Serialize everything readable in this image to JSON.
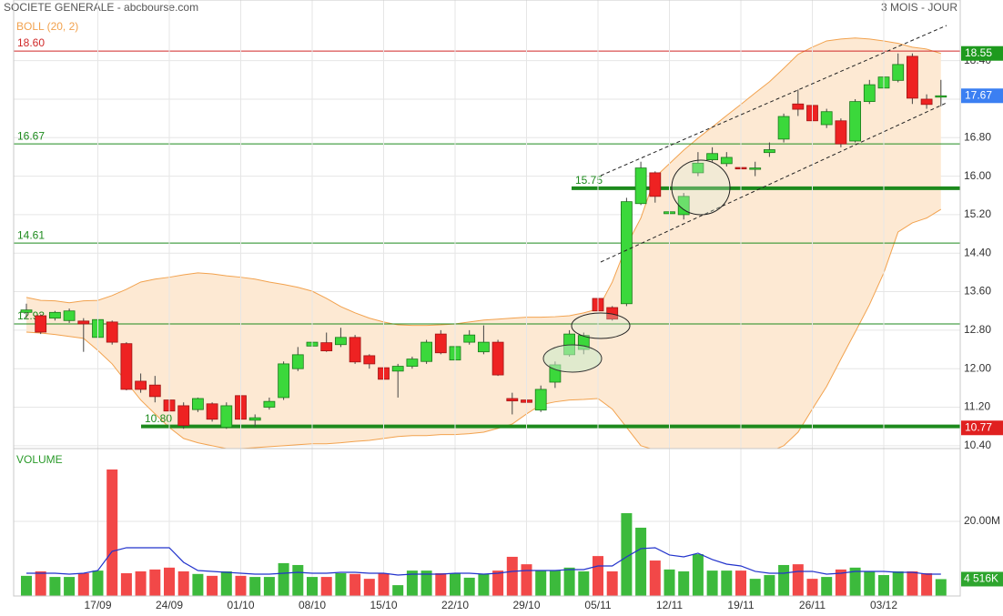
{
  "chart_data": [
    {
      "type": "candlestick",
      "title": "SOCIETE GENERALE - abcbourse.com",
      "subtitle": "3 MOIS - JOUR",
      "categories": [
        null,
        null,
        null,
        null,
        null,
        "17/09",
        null,
        null,
        null,
        null,
        "24/09",
        null,
        null,
        null,
        null,
        "01/10",
        null,
        null,
        null,
        null,
        "08/10",
        null,
        null,
        null,
        null,
        "15/10",
        null,
        null,
        null,
        null,
        "22/10",
        null,
        null,
        null,
        null,
        "29/10",
        null,
        null,
        null,
        null,
        "05/11",
        null,
        null,
        null,
        null,
        "12/11",
        null,
        null,
        null,
        null,
        "19/11",
        null,
        null,
        null,
        null,
        "26/11",
        null,
        null,
        null,
        null,
        "03/12",
        null,
        null,
        null,
        null
      ],
      "open": [
        13.17,
        13.1,
        13.05,
        13.0,
        12.99,
        12.65,
        12.97,
        12.52,
        11.74,
        11.66,
        11.35,
        11.23,
        11.15,
        11.27,
        10.78,
        11.44,
        10.93,
        11.2,
        11.4,
        12.0,
        12.47,
        12.54,
        12.5,
        12.65,
        12.27,
        12.02,
        11.95,
        12.05,
        12.15,
        12.72,
        12.18,
        12.55,
        12.35,
        12.55,
        11.38,
        11.35,
        11.14,
        11.72,
        12.29,
        12.4,
        13.46,
        13.27,
        13.35,
        15.43,
        16.07,
        15.22,
        15.2,
        16.07,
        16.34,
        16.26,
        16.18,
        16.15,
        16.49,
        16.77,
        17.5,
        17.47,
        17.07,
        17.15,
        16.73,
        17.55,
        17.83,
        17.99,
        18.49,
        17.6,
        17.66
      ],
      "high": [
        13.35,
        13.13,
        13.2,
        13.25,
        13.05,
        13.1,
        13.0,
        12.55,
        11.9,
        11.85,
        11.45,
        11.3,
        11.4,
        11.3,
        11.3,
        11.5,
        11.05,
        11.4,
        12.15,
        12.45,
        12.65,
        12.75,
        12.85,
        12.7,
        12.3,
        12.05,
        12.1,
        12.25,
        12.6,
        12.8,
        12.5,
        12.8,
        12.9,
        12.6,
        11.5,
        11.5,
        11.65,
        12.15,
        12.8,
        12.75,
        13.55,
        13.3,
        15.55,
        16.3,
        16.1,
        15.3,
        15.65,
        16.5,
        16.6,
        16.5,
        16.25,
        16.3,
        16.7,
        17.3,
        17.8,
        17.5,
        17.4,
        17.2,
        17.6,
        18.0,
        18.15,
        18.55,
        18.55,
        17.7,
        18.0
      ],
      "low": [
        13.05,
        12.72,
        13.0,
        12.95,
        12.35,
        12.6,
        12.5,
        11.55,
        11.5,
        11.3,
        11.0,
        10.75,
        11.1,
        10.9,
        10.75,
        10.9,
        10.8,
        11.15,
        11.35,
        11.95,
        12.4,
        12.35,
        12.45,
        12.1,
        12.0,
        11.5,
        11.4,
        12.0,
        12.1,
        12.3,
        12.05,
        12.5,
        12.3,
        11.85,
        11.05,
        11.1,
        11.1,
        11.6,
        12.25,
        12.3,
        13.15,
        13.0,
        13.3,
        15.4,
        15.45,
        14.95,
        15.1,
        16.0,
        16.3,
        16.2,
        15.85,
        16.0,
        16.4,
        16.7,
        17.25,
        16.95,
        17.0,
        16.6,
        16.7,
        17.5,
        17.8,
        17.95,
        17.5,
        17.4,
        17.45
      ],
      "close": [
        13.22,
        12.76,
        13.17,
        13.2,
        12.93,
        13.02,
        12.55,
        11.57,
        11.57,
        11.42,
        11.12,
        10.82,
        11.38,
        10.95,
        11.23,
        10.95,
        10.98,
        11.32,
        12.1,
        12.29,
        12.55,
        12.37,
        12.65,
        12.14,
        12.1,
        11.78,
        12.05,
        12.2,
        12.55,
        12.33,
        12.46,
        12.7,
        12.55,
        11.87,
        11.33,
        11.3,
        11.57,
        12.08,
        12.72,
        12.69,
        13.2,
        13.03,
        15.47,
        16.17,
        15.58,
        15.26,
        15.58,
        16.27,
        16.47,
        16.39,
        16.15,
        16.17,
        16.55,
        17.24,
        17.39,
        17.15,
        17.34,
        16.67,
        17.55,
        17.9,
        18.06,
        18.32,
        17.62,
        17.49,
        17.67
      ],
      "up_color": "#3bd83b",
      "down_color": "#ee2222",
      "bollinger": {
        "name": "BOLL (20, 2)",
        "color": "#f2a24e",
        "fill": "#fde9d3",
        "upper": [
          13.48,
          13.42,
          13.41,
          13.37,
          13.41,
          13.42,
          13.52,
          13.65,
          13.8,
          13.86,
          13.9,
          13.95,
          13.99,
          13.97,
          13.93,
          13.9,
          13.86,
          13.8,
          13.75,
          13.69,
          13.61,
          13.46,
          13.29,
          13.16,
          13.05,
          12.97,
          12.91,
          12.9,
          12.9,
          12.91,
          12.93,
          12.97,
          13.01,
          13.03,
          13.05,
          13.07,
          13.07,
          13.08,
          13.1,
          13.16,
          13.24,
          13.8,
          14.56,
          15.13,
          15.98,
          16.26,
          16.54,
          16.79,
          17.02,
          17.26,
          17.49,
          17.73,
          17.96,
          18.24,
          18.53,
          18.68,
          18.81,
          18.85,
          18.87,
          18.85,
          18.81,
          18.76,
          18.68,
          18.64,
          18.55
        ],
        "lower": [
          12.76,
          12.74,
          12.71,
          12.67,
          12.63,
          12.38,
          12.1,
          11.72,
          11.35,
          11.06,
          10.78,
          10.55,
          10.46,
          10.4,
          10.34,
          10.34,
          10.36,
          10.38,
          10.4,
          10.42,
          10.44,
          10.44,
          10.46,
          10.49,
          10.51,
          10.55,
          10.59,
          10.61,
          10.61,
          10.63,
          10.63,
          10.65,
          10.68,
          10.76,
          10.85,
          11.06,
          11.25,
          11.31,
          11.35,
          11.36,
          11.38,
          11.16,
          10.78,
          10.4,
          10.31,
          10.27,
          10.25,
          10.25,
          10.25,
          10.25,
          10.25,
          10.25,
          10.27,
          10.4,
          10.68,
          11.16,
          11.63,
          12.2,
          12.76,
          13.33,
          13.99,
          14.84,
          15.03,
          15.13,
          15.31
        ]
      },
      "levels": [
        {
          "value": 18.6,
          "label": "18.60",
          "color": "#d02828",
          "style": "thin"
        },
        {
          "value": 16.67,
          "label": "16.67",
          "color": "#1d8a1d",
          "style": "thin"
        },
        {
          "value": 14.61,
          "label": "14.61",
          "color": "#1d8a1d",
          "style": "thin"
        },
        {
          "value": 12.93,
          "label": "12.93",
          "color": "#1d8a1d",
          "style": "thin"
        },
        {
          "value": 15.75,
          "label": "15.75",
          "color": "#1d8a1d",
          "style": "thick"
        },
        {
          "value": 10.8,
          "label": "10.80",
          "color": "#1d8a1d",
          "style": "thick"
        }
      ],
      "price_labels": [
        {
          "value": 18.55,
          "label": "18.55",
          "color": "#1e9a1e"
        },
        {
          "value": 17.67,
          "label": "17.67",
          "color": "#3b7ff2"
        },
        {
          "value": 10.77,
          "label": "10.77",
          "color": "#e02020"
        }
      ],
      "ylim": [
        10.34,
        19.66
      ],
      "yticks": [
        {
          "value": 10.4,
          "label": "10.40"
        },
        {
          "value": 11.2,
          "label": "11.20"
        },
        {
          "value": 12.0,
          "label": "12.00"
        },
        {
          "value": 12.8,
          "label": "12.80"
        },
        {
          "value": 13.6,
          "label": "13.60"
        },
        {
          "value": 14.4,
          "label": "14.40"
        },
        {
          "value": 15.2,
          "label": "15.20"
        },
        {
          "value": 16.0,
          "label": "16.00"
        },
        {
          "value": 16.8,
          "label": "16.80"
        },
        {
          "value": 17.6,
          "label": "17.60"
        },
        {
          "value": 18.4,
          "label": "18.40"
        }
      ],
      "grid": true
    },
    {
      "type": "bar",
      "title": "VOLUME",
      "values": [
        5.4,
        6.6,
        5.1,
        5.1,
        6.1,
        6.8,
        33.9,
        6.1,
        6.6,
        7.1,
        7.6,
        6.6,
        5.9,
        5.4,
        6.6,
        5.4,
        5.1,
        5.1,
        8.8,
        8.3,
        5.1,
        5.1,
        6.1,
        5.9,
        4.6,
        6.1,
        2.9,
        6.8,
        6.8,
        6.1,
        6.1,
        4.9,
        5.9,
        6.8,
        10.5,
        8.5,
        6.8,
        6.8,
        7.6,
        6.6,
        10.7,
        6.6,
        22.2,
        18.3,
        9.5,
        7.1,
        6.6,
        11.2,
        6.8,
        6.8,
        6.8,
        4.6,
        5.6,
        8.3,
        8.5,
        4.6,
        5.1,
        7.1,
        7.6,
        6.6,
        5.6,
        6.6,
        6.6,
        6.1,
        4.516
      ],
      "up_color": "#3cba3c",
      "down_color": "#f24848",
      "average": {
        "color": "#2233cc",
        "values": [
          6.1,
          6.1,
          6.1,
          5.86,
          6.1,
          6.83,
          11.96,
          12.93,
          12.93,
          12.93,
          12.93,
          9.03,
          6.83,
          6.59,
          6.34,
          6.1,
          5.86,
          5.86,
          6.1,
          6.34,
          6.1,
          6.1,
          6.34,
          6.34,
          6.1,
          6.1,
          5.61,
          5.86,
          5.86,
          5.86,
          6.1,
          6.1,
          5.86,
          6.1,
          6.59,
          6.83,
          6.83,
          6.83,
          7.08,
          7.08,
          8.05,
          8.05,
          10.49,
          12.69,
          12.93,
          10.98,
          10.49,
          11.47,
          9.76,
          8.54,
          8.05,
          6.59,
          6.1,
          6.1,
          6.59,
          6.59,
          5.86,
          6.1,
          6.59,
          6.59,
          6.59,
          6.34,
          6.34,
          5.86,
          5.86
        ]
      },
      "last_label": {
        "value": 4.516,
        "label": "4 516K",
        "color": "#2ea52e"
      },
      "ylim": [
        0,
        39.5
      ],
      "yticks": [
        {
          "value": 20,
          "label": "20.00M"
        }
      ],
      "grid": true
    }
  ]
}
